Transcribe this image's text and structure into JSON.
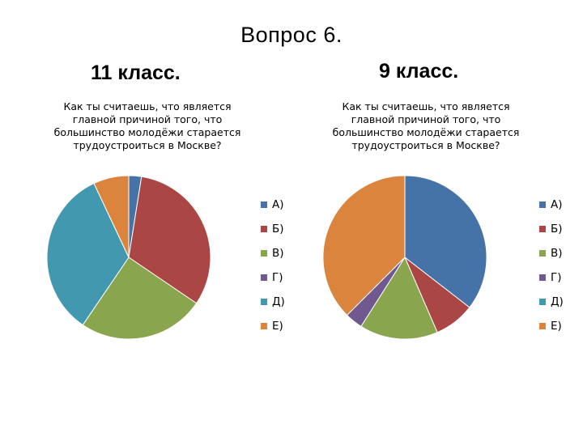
{
  "slide": {
    "title": "Вопрос 6."
  },
  "chart_data": [
    {
      "type": "pie",
      "heading": "11 класс.",
      "title": "Как ты считаешь, что является\nглавной причиной того, что\nбольшинство молодёжи старается\nтрудоустроиться в Москве?",
      "categories": [
        "А)",
        "Б)",
        "В)",
        "Г)",
        "Д)",
        "Е)"
      ],
      "values": [
        2.5,
        32,
        25,
        0,
        33.5,
        7
      ],
      "colors": [
        "#4572A7",
        "#AA4643",
        "#89A54E",
        "#71588F",
        "#4198AF",
        "#DB843D"
      ],
      "legend": "right"
    },
    {
      "type": "pie",
      "heading": "9 класс.",
      "title": "Как ты считаешь, что является\nглавной причиной того, что\nбольшинство молодёжи старается\nтрудоустроиться в Москве?",
      "categories": [
        "А)",
        "Б)",
        "В)",
        "Г)",
        "Д)",
        "Е)"
      ],
      "values": [
        35.5,
        8,
        15.5,
        3.5,
        0,
        37.5
      ],
      "colors": [
        "#4572A7",
        "#AA4643",
        "#89A54E",
        "#71588F",
        "#4198AF",
        "#DB843D"
      ],
      "legend": "right"
    }
  ]
}
